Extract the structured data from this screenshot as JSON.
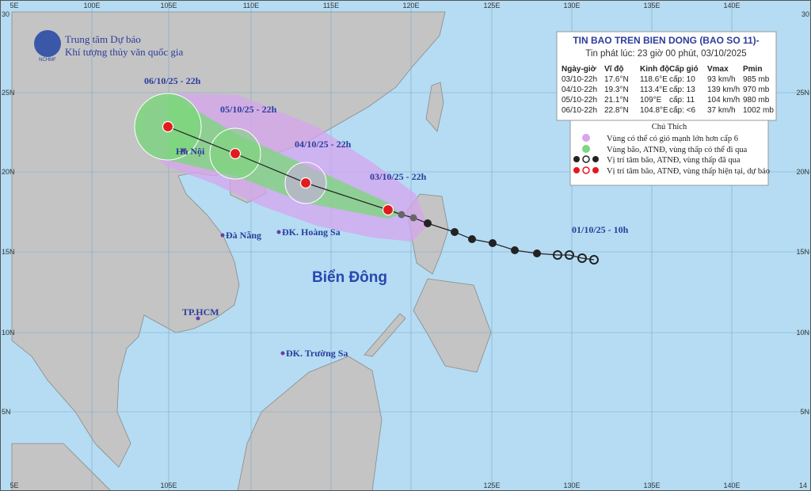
{
  "header": {
    "org_lines": [
      "Trung tâm Dự báo",
      "Khí tượng thủy văn quốc gia"
    ],
    "logo_text": "NCHMF"
  },
  "bulletin": {
    "title": "TIN BAO TREN BIEN DONG (BAO SO 11)-",
    "issued": "Tin phát lúc: 23 giờ 00 phút, 03/10/2025",
    "table": {
      "columns": [
        "Ngày-giờ",
        "Vĩ độ",
        "Kinh độ",
        "Cấp gió",
        "Vmax",
        "Pmin"
      ],
      "rows": [
        [
          "03/10-22h",
          "17.6°N",
          "118.6°E",
          "cấp: 10",
          "93 km/h",
          "985 mb"
        ],
        [
          "04/10-22h",
          "19.3°N",
          "113.4°E",
          "cấp: 13",
          "139 km/h",
          "970 mb"
        ],
        [
          "05/10-22h",
          "21.1°N",
          "109°E",
          "cấp: 11",
          "104 km/h",
          "980 mb"
        ],
        [
          "06/10-22h",
          "22.8°N",
          "104.8°E",
          "cấp: <6",
          "37 km/h",
          "1002 mb"
        ]
      ]
    }
  },
  "legend": {
    "title": "Chú Thích",
    "items": [
      "Vùng có thể có gió mạnh lớn hơn cấp 6",
      "Vùng bão, ATNĐ, vùng thấp có thể đi qua",
      "Vị trí tâm bão, ATNĐ, vùng thấp đã qua",
      "Vị trí tâm bão, ATNĐ, vùng thấp hiện tại, dự báo"
    ]
  },
  "track_labels": [
    "06/10/25 - 22h",
    "05/10/25 - 22h",
    "04/10/25 - 22h",
    "03/10/25 - 22h",
    "01/10/25 - 10h"
  ],
  "places": [
    "Hà Nội",
    "Đà Nẵng",
    "ĐK. Hoàng Sa",
    "TP.HCM",
    "ĐK. Trường Sa"
  ],
  "sea_label": "Biển Đông",
  "grid": {
    "top": [
      "5E",
      "100E",
      "105E",
      "110E",
      "115E",
      "120E",
      "125E",
      "130E",
      "135E",
      "140E"
    ],
    "bottom": [
      "5E",
      "105E",
      "125E",
      "130E",
      "135E",
      "140E",
      "14"
    ],
    "left": [
      "30",
      "25N",
      "20N",
      "15N",
      "10N",
      "5N"
    ],
    "right": [
      "30",
      "25N",
      "20N",
      "15N",
      "10N",
      "5N"
    ]
  }
}
